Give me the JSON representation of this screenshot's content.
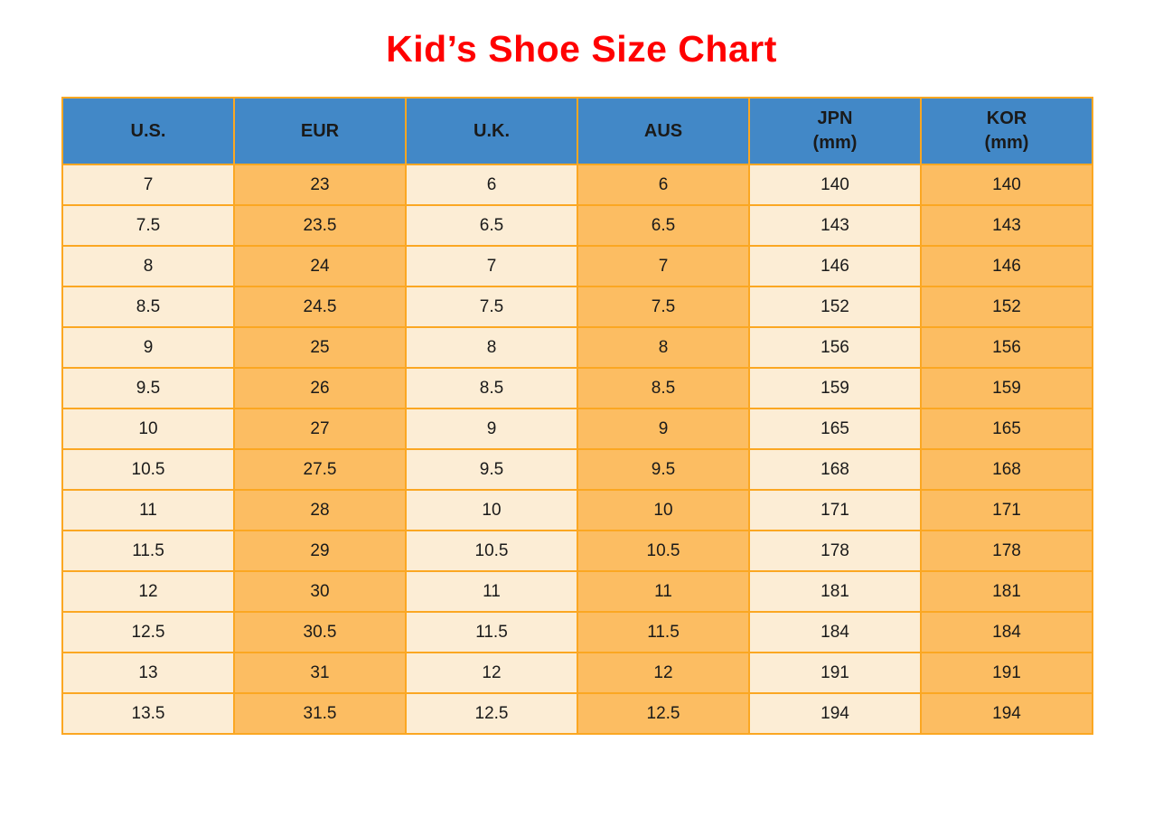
{
  "chart_data": {
    "type": "table",
    "title": "Kid’s Shoe Size Chart",
    "columns": [
      {
        "label": "U.S."
      },
      {
        "label": "EUR"
      },
      {
        "label": "U.K."
      },
      {
        "label": "AUS"
      },
      {
        "label": "JPN",
        "unit": "(mm)"
      },
      {
        "label": "KOR",
        "unit": "(mm)"
      }
    ],
    "rows": [
      [
        "7",
        "23",
        "6",
        "6",
        "140",
        "140"
      ],
      [
        "7.5",
        "23.5",
        "6.5",
        "6.5",
        "143",
        "143"
      ],
      [
        "8",
        "24",
        "7",
        "7",
        "146",
        "146"
      ],
      [
        "8.5",
        "24.5",
        "7.5",
        "7.5",
        "152",
        "152"
      ],
      [
        "9",
        "25",
        "8",
        "8",
        "156",
        "156"
      ],
      [
        "9.5",
        "26",
        "8.5",
        "8.5",
        "159",
        "159"
      ],
      [
        "10",
        "27",
        "9",
        "9",
        "165",
        "165"
      ],
      [
        "10.5",
        "27.5",
        "9.5",
        "9.5",
        "168",
        "168"
      ],
      [
        "11",
        "28",
        "10",
        "10",
        "171",
        "171"
      ],
      [
        "11.5",
        "29",
        "10.5",
        "10.5",
        "178",
        "178"
      ],
      [
        "12",
        "30",
        "11",
        "11",
        "181",
        "181"
      ],
      [
        "12.5",
        "30.5",
        "11.5",
        "11.5",
        "184",
        "184"
      ],
      [
        "13",
        "31",
        "12",
        "12",
        "191",
        "191"
      ],
      [
        "13.5",
        "31.5",
        "12.5",
        "12.5",
        "194",
        "194"
      ]
    ],
    "layout": {
      "legend": "none",
      "grid": "all-cell-borders",
      "column_color_pattern": [
        "light",
        "dark",
        "light",
        "dark",
        "light",
        "dark"
      ]
    }
  },
  "styles": {
    "title_color": "#FF0000",
    "header_bg": "#4288C7",
    "col_light_bg": "#FCEDD5",
    "col_dark_bg": "#FCBD62",
    "border_color": "#FBA722",
    "text_color": "#1A1A1A"
  }
}
